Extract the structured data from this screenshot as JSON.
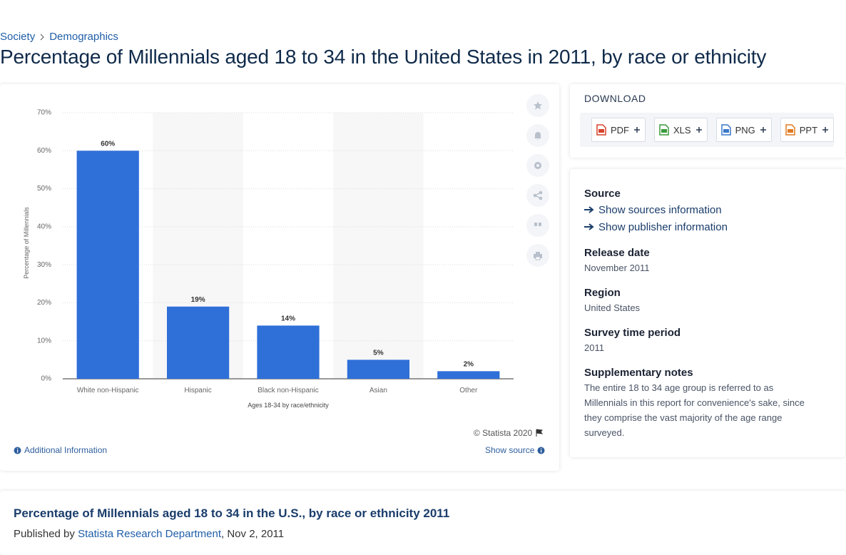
{
  "breadcrumb": [
    "Society",
    "Demographics"
  ],
  "title": "Percentage of Millennials aged 18 to 34 in the United States in 2011, by race or ethnicity",
  "chart_data": {
    "type": "bar",
    "categories": [
      "White non-Hispanic",
      "Hispanic",
      "Black non-Hispanic",
      "Asian",
      "Other"
    ],
    "values": [
      60,
      19,
      14,
      5,
      2
    ],
    "value_labels": [
      "60%",
      "19%",
      "14%",
      "5%",
      "2%"
    ],
    "color": "#2f6fd8",
    "ylim": [
      0,
      70
    ],
    "yticks": [
      {
        "value": 0,
        "label": "0%"
      },
      {
        "value": 10,
        "label": "10%"
      },
      {
        "value": 20,
        "label": "20%"
      },
      {
        "value": 30,
        "label": "30%"
      },
      {
        "value": 40,
        "label": "40%"
      },
      {
        "value": 50,
        "label": "50%"
      },
      {
        "value": 60,
        "label": "60%"
      },
      {
        "value": 70,
        "label": "70%"
      }
    ],
    "y_label": "Percentage of Millennials",
    "x_label": "Ages 18-34 by race/ethnicity",
    "grid": true
  },
  "chart_footer": {
    "copyright": "© Statista 2020",
    "additional": "Additional Information",
    "show_source": "Show source"
  },
  "download": {
    "title": "DOWNLOAD",
    "formats": [
      "PDF",
      "XLS",
      "PNG",
      "PPT"
    ]
  },
  "details": {
    "source_label": "Source",
    "show_sources": "Show sources information",
    "show_publisher": "Show publisher information",
    "items": [
      {
        "label": "Release date",
        "value": "November 2011"
      },
      {
        "label": "Region",
        "value": "United States"
      },
      {
        "label": "Survey time period",
        "value": "2011"
      },
      {
        "label": "Supplementary notes",
        "value": "The entire 18 to 34 age group is referred to as Millennials in this report for convenience's sake, since they comprise the vast majority of the age range surveyed."
      }
    ]
  },
  "publication": {
    "title": "Percentage of Millennials aged 18 to 34 in the U.S., by race or ethnicity 2011",
    "published_by": "Published by",
    "publisher": "Statista Research Department",
    "date": ", Nov 2, 2011"
  }
}
